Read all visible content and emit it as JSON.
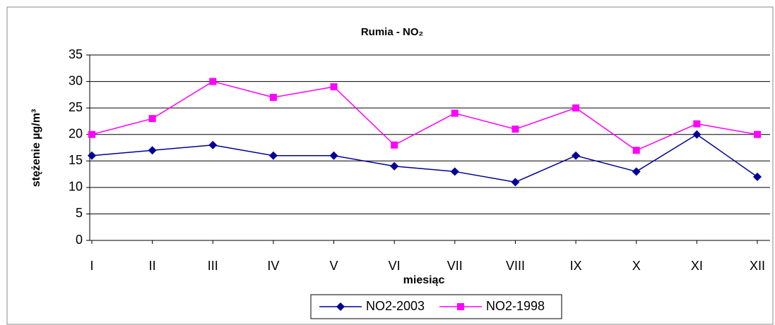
{
  "chart_data": {
    "type": "line",
    "title": "Rumia - NO₂",
    "y_label": "stężenie µg/m³",
    "x_label": "miesiąc",
    "categories": [
      "I",
      "II",
      "III",
      "IV",
      "V",
      "VI",
      "VII",
      "VIII",
      "IX",
      "X",
      "XI",
      "XII"
    ],
    "series": [
      {
        "name": "NO2-2003",
        "color": "#000099",
        "marker": "diamond",
        "values": [
          16,
          17,
          18,
          16,
          16,
          14,
          13,
          11,
          16,
          13,
          20,
          12
        ]
      },
      {
        "name": "NO2-1998",
        "color": "#ff00ff",
        "marker": "square",
        "values": [
          20,
          23,
          30,
          27,
          29,
          18,
          24,
          21,
          25,
          17,
          22,
          20
        ]
      }
    ],
    "ylim": [
      0,
      35
    ],
    "yticks": [
      0,
      5,
      10,
      15,
      20,
      25,
      30,
      35
    ],
    "grid": true,
    "legend": "bottom"
  }
}
